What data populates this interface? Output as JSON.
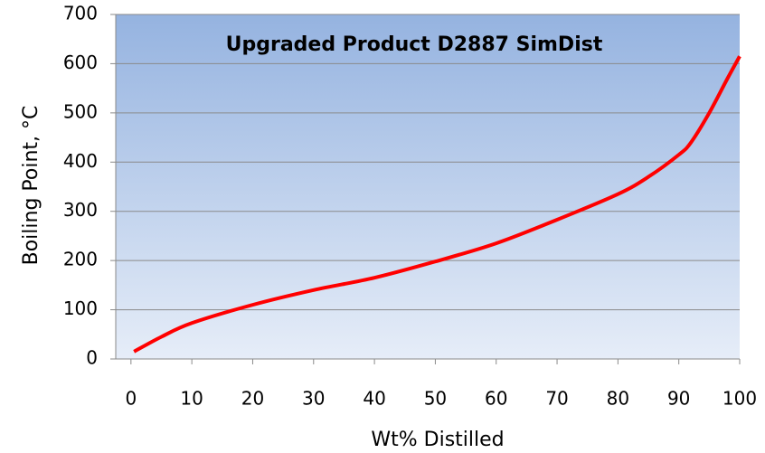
{
  "chart_data": {
    "type": "line",
    "title": "Upgraded Product D2887 SimDist",
    "x_label": "Wt% Distilled",
    "y_label": "Boiling Point, °C",
    "series": [
      {
        "name": "D2887 SimDist",
        "color": "#ff0000",
        "x": [
          0.5,
          5,
          10,
          20,
          30,
          40,
          50,
          60,
          70,
          80,
          85,
          90,
          92,
          95,
          98,
          100
        ],
        "values": [
          15,
          45,
          73,
          110,
          140,
          165,
          198,
          235,
          283,
          335,
          370,
          415,
          440,
          500,
          570,
          615
        ]
      }
    ],
    "xlim": [
      -2.5,
      100
    ],
    "xticks": [
      0,
      10,
      20,
      30,
      40,
      50,
      60,
      70,
      80,
      90,
      100
    ],
    "ylim": [
      0,
      700
    ],
    "yticks": [
      0,
      100,
      200,
      300,
      400,
      500,
      600,
      700
    ],
    "grid": true
  }
}
